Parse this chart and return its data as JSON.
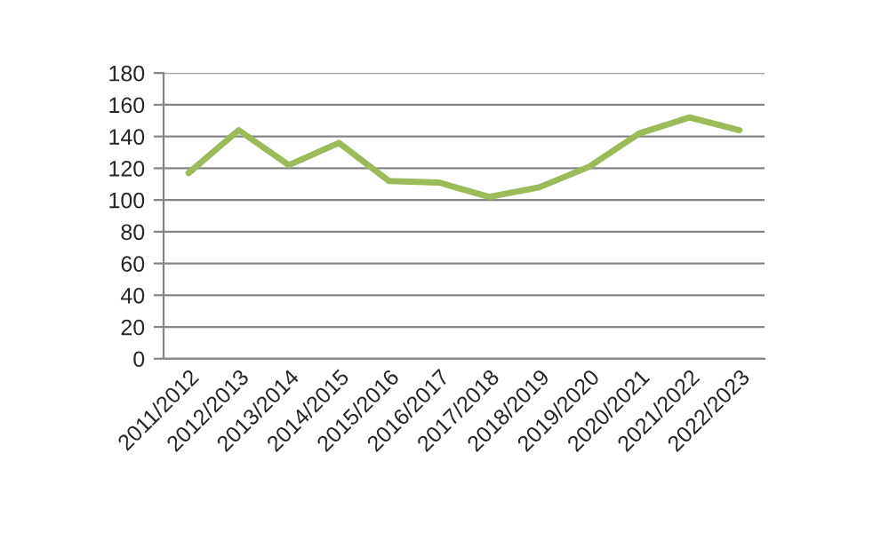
{
  "chart_data": {
    "type": "line",
    "categories": [
      "2011/2012",
      "2012/2013",
      "2013/2014",
      "2014/2015",
      "2015/2016",
      "2016/2017",
      "2017/2018",
      "2018/2019",
      "2019/2020",
      "2020/2021",
      "2021/2022",
      "2022/2023"
    ],
    "series": [
      {
        "color": "#9bbb59",
        "values": [
          117,
          144,
          122,
          136,
          112,
          111,
          102,
          108,
          121,
          142,
          152,
          144
        ]
      }
    ],
    "ylim": [
      0,
      180
    ],
    "yticks": [
      0,
      20,
      40,
      60,
      80,
      100,
      120,
      140,
      160,
      180
    ],
    "grid": "y",
    "legend": false,
    "marker": "none",
    "line_style": "solid"
  }
}
